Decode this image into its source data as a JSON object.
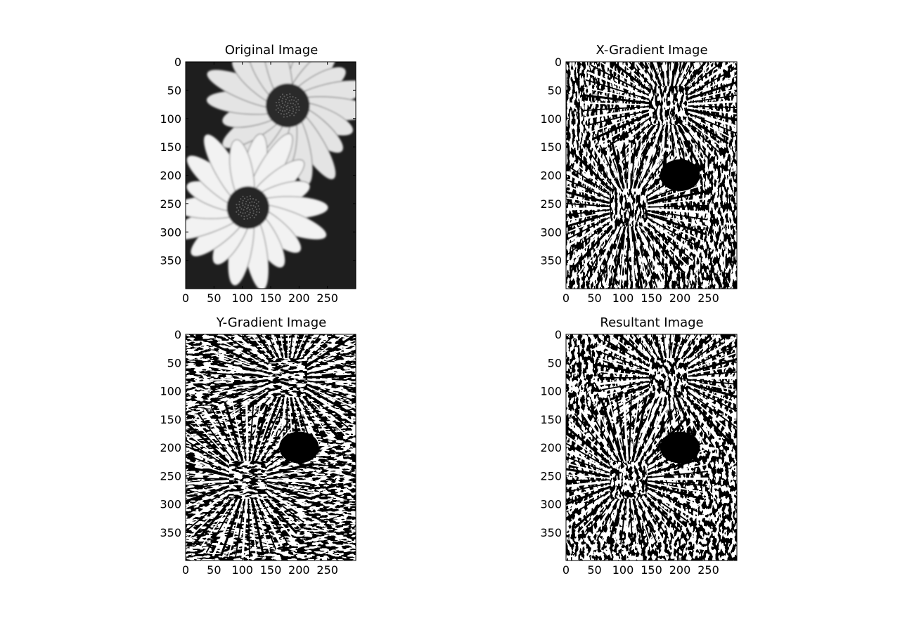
{
  "figure": {
    "background": "#ffffff",
    "axes_color": "#000000"
  },
  "chart_data": [
    {
      "type": "image",
      "title": "Original Image",
      "content": "grayscale photograph of two daisy flowers",
      "colormap": "gray",
      "xlim": [
        0,
        300
      ],
      "ylim": [
        400,
        0
      ],
      "xticks": [
        0,
        50,
        100,
        150,
        200,
        250
      ],
      "yticks": [
        0,
        50,
        100,
        150,
        200,
        250,
        300,
        350
      ]
    },
    {
      "type": "image",
      "title": "X-Gradient Image",
      "content": "binary black/white horizontal gradient of the daisy photo",
      "colormap": "gray",
      "xlim": [
        0,
        300
      ],
      "ylim": [
        400,
        0
      ],
      "xticks": [
        0,
        50,
        100,
        150,
        200,
        250
      ],
      "yticks": [
        0,
        50,
        100,
        150,
        200,
        250,
        300,
        350
      ]
    },
    {
      "type": "image",
      "title": "Y-Gradient Image",
      "content": "binary black/white vertical gradient of the daisy photo",
      "colormap": "gray",
      "xlim": [
        0,
        300
      ],
      "ylim": [
        400,
        0
      ],
      "xticks": [
        0,
        50,
        100,
        150,
        200,
        250
      ],
      "yticks": [
        0,
        50,
        100,
        150,
        200,
        250,
        300,
        350
      ]
    },
    {
      "type": "image",
      "title": "Resultant Image",
      "content": "binary black/white combined gradient of the daisy photo",
      "colormap": "gray",
      "xlim": [
        0,
        300
      ],
      "ylim": [
        400,
        0
      ],
      "xticks": [
        0,
        50,
        100,
        150,
        200,
        250
      ],
      "yticks": [
        0,
        50,
        100,
        150,
        200,
        250,
        300,
        350
      ]
    }
  ]
}
